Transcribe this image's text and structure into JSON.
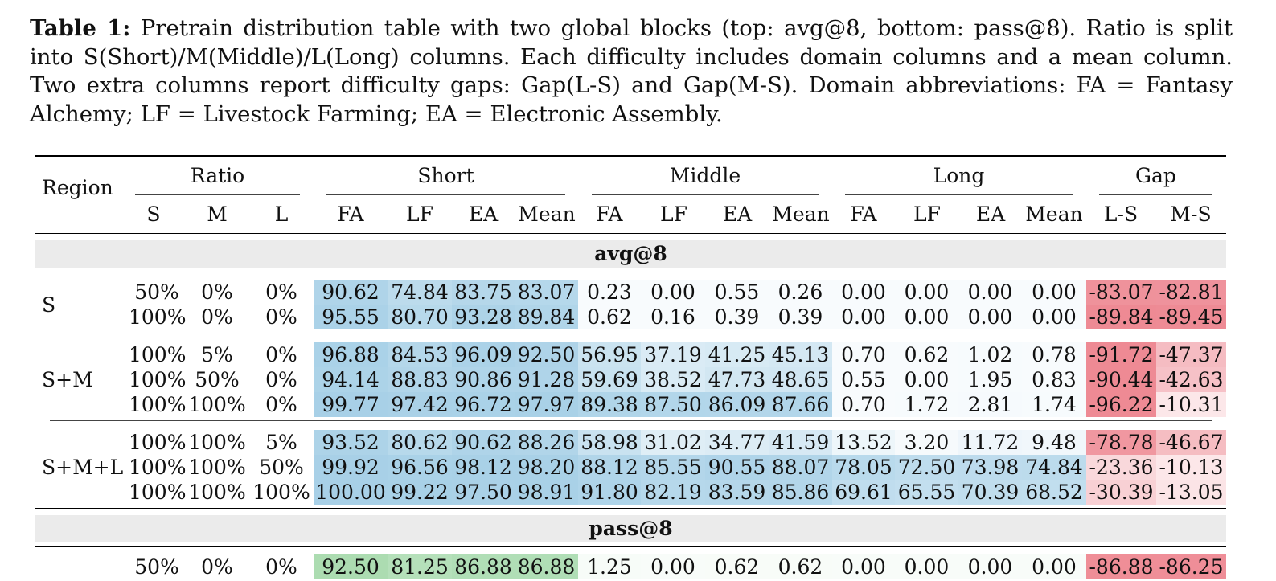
{
  "caption": {
    "label": "Table 1:",
    "text": "Pretrain distribution table with two global blocks (top: avg@8, bottom: pass@8). Ratio is split into S(Short)/M(Middle)/L(Long) columns. Each difficulty includes domain columns and a mean column. Two extra columns report difficulty gaps: Gap(L-S) and Gap(M-S). Domain abbreviations: FA = Fantasy Alchemy; LF = Livestock Farming; EA = Electronic Assembly."
  },
  "header": {
    "region": "Region",
    "groups": [
      "Ratio",
      "Short",
      "Middle",
      "Long",
      "Gap"
    ],
    "subcols": [
      "S",
      "M",
      "L",
      "FA",
      "LF",
      "EA",
      "Mean",
      "FA",
      "LF",
      "EA",
      "Mean",
      "FA",
      "LF",
      "EA",
      "Mean",
      "L-S",
      "M-S"
    ]
  },
  "blocks": [
    {
      "title": "avg@8",
      "regions": [
        {
          "name": "S",
          "rows": [
            [
              "50%",
              "0%",
              "0%",
              "90.62",
              "74.84",
              "83.75",
              "83.07",
              "0.23",
              "0.00",
              "0.55",
              "0.26",
              "0.00",
              "0.00",
              "0.00",
              "0.00",
              "-83.07",
              "-82.81"
            ],
            [
              "100%",
              "0%",
              "0%",
              "95.55",
              "80.70",
              "93.28",
              "89.84",
              "0.62",
              "0.16",
              "0.39",
              "0.39",
              "0.00",
              "0.00",
              "0.00",
              "0.00",
              "-89.84",
              "-89.45"
            ]
          ]
        },
        {
          "name": "S+M",
          "rows": [
            [
              "100%",
              "5%",
              "0%",
              "96.88",
              "84.53",
              "96.09",
              "92.50",
              "56.95",
              "37.19",
              "41.25",
              "45.13",
              "0.70",
              "0.62",
              "1.02",
              "0.78",
              "-91.72",
              "-47.37"
            ],
            [
              "100%",
              "50%",
              "0%",
              "94.14",
              "88.83",
              "90.86",
              "91.28",
              "59.69",
              "38.52",
              "47.73",
              "48.65",
              "0.55",
              "0.00",
              "1.95",
              "0.83",
              "-90.44",
              "-42.63"
            ],
            [
              "100%",
              "100%",
              "0%",
              "99.77",
              "97.42",
              "96.72",
              "97.97",
              "89.38",
              "87.50",
              "86.09",
              "87.66",
              "0.70",
              "1.72",
              "2.81",
              "1.74",
              "-96.22",
              "-10.31"
            ]
          ]
        },
        {
          "name": "S+M+L",
          "rows": [
            [
              "100%",
              "100%",
              "5%",
              "93.52",
              "80.62",
              "90.62",
              "88.26",
              "58.98",
              "31.02",
              "34.77",
              "41.59",
              "13.52",
              "3.20",
              "11.72",
              "9.48",
              "-78.78",
              "-46.67"
            ],
            [
              "100%",
              "100%",
              "50%",
              "99.92",
              "96.56",
              "98.12",
              "98.20",
              "88.12",
              "85.55",
              "90.55",
              "88.07",
              "78.05",
              "72.50",
              "73.98",
              "74.84",
              "-23.36",
              "-10.13"
            ],
            [
              "100%",
              "100%",
              "100%",
              "100.00",
              "99.22",
              "97.50",
              "98.91",
              "91.80",
              "82.19",
              "83.59",
              "85.86",
              "69.61",
              "65.55",
              "70.39",
              "68.52",
              "-30.39",
              "-13.05"
            ]
          ]
        }
      ]
    },
    {
      "title": "pass@8",
      "regions": [
        {
          "name": "",
          "rows": [
            [
              "50%",
              "0%",
              "0%",
              "92.50",
              "81.25",
              "86.88",
              "86.88",
              "1.25",
              "0.00",
              "0.62",
              "0.62",
              "0.00",
              "0.00",
              "0.00",
              "0.00",
              "-86.88",
              "-86.25"
            ]
          ]
        }
      ]
    }
  ],
  "colors": {
    "blue": "#8fc3e0",
    "green": "#8ccf94",
    "red": "#ee8a94",
    "block_bg": "#ebebeb"
  }
}
